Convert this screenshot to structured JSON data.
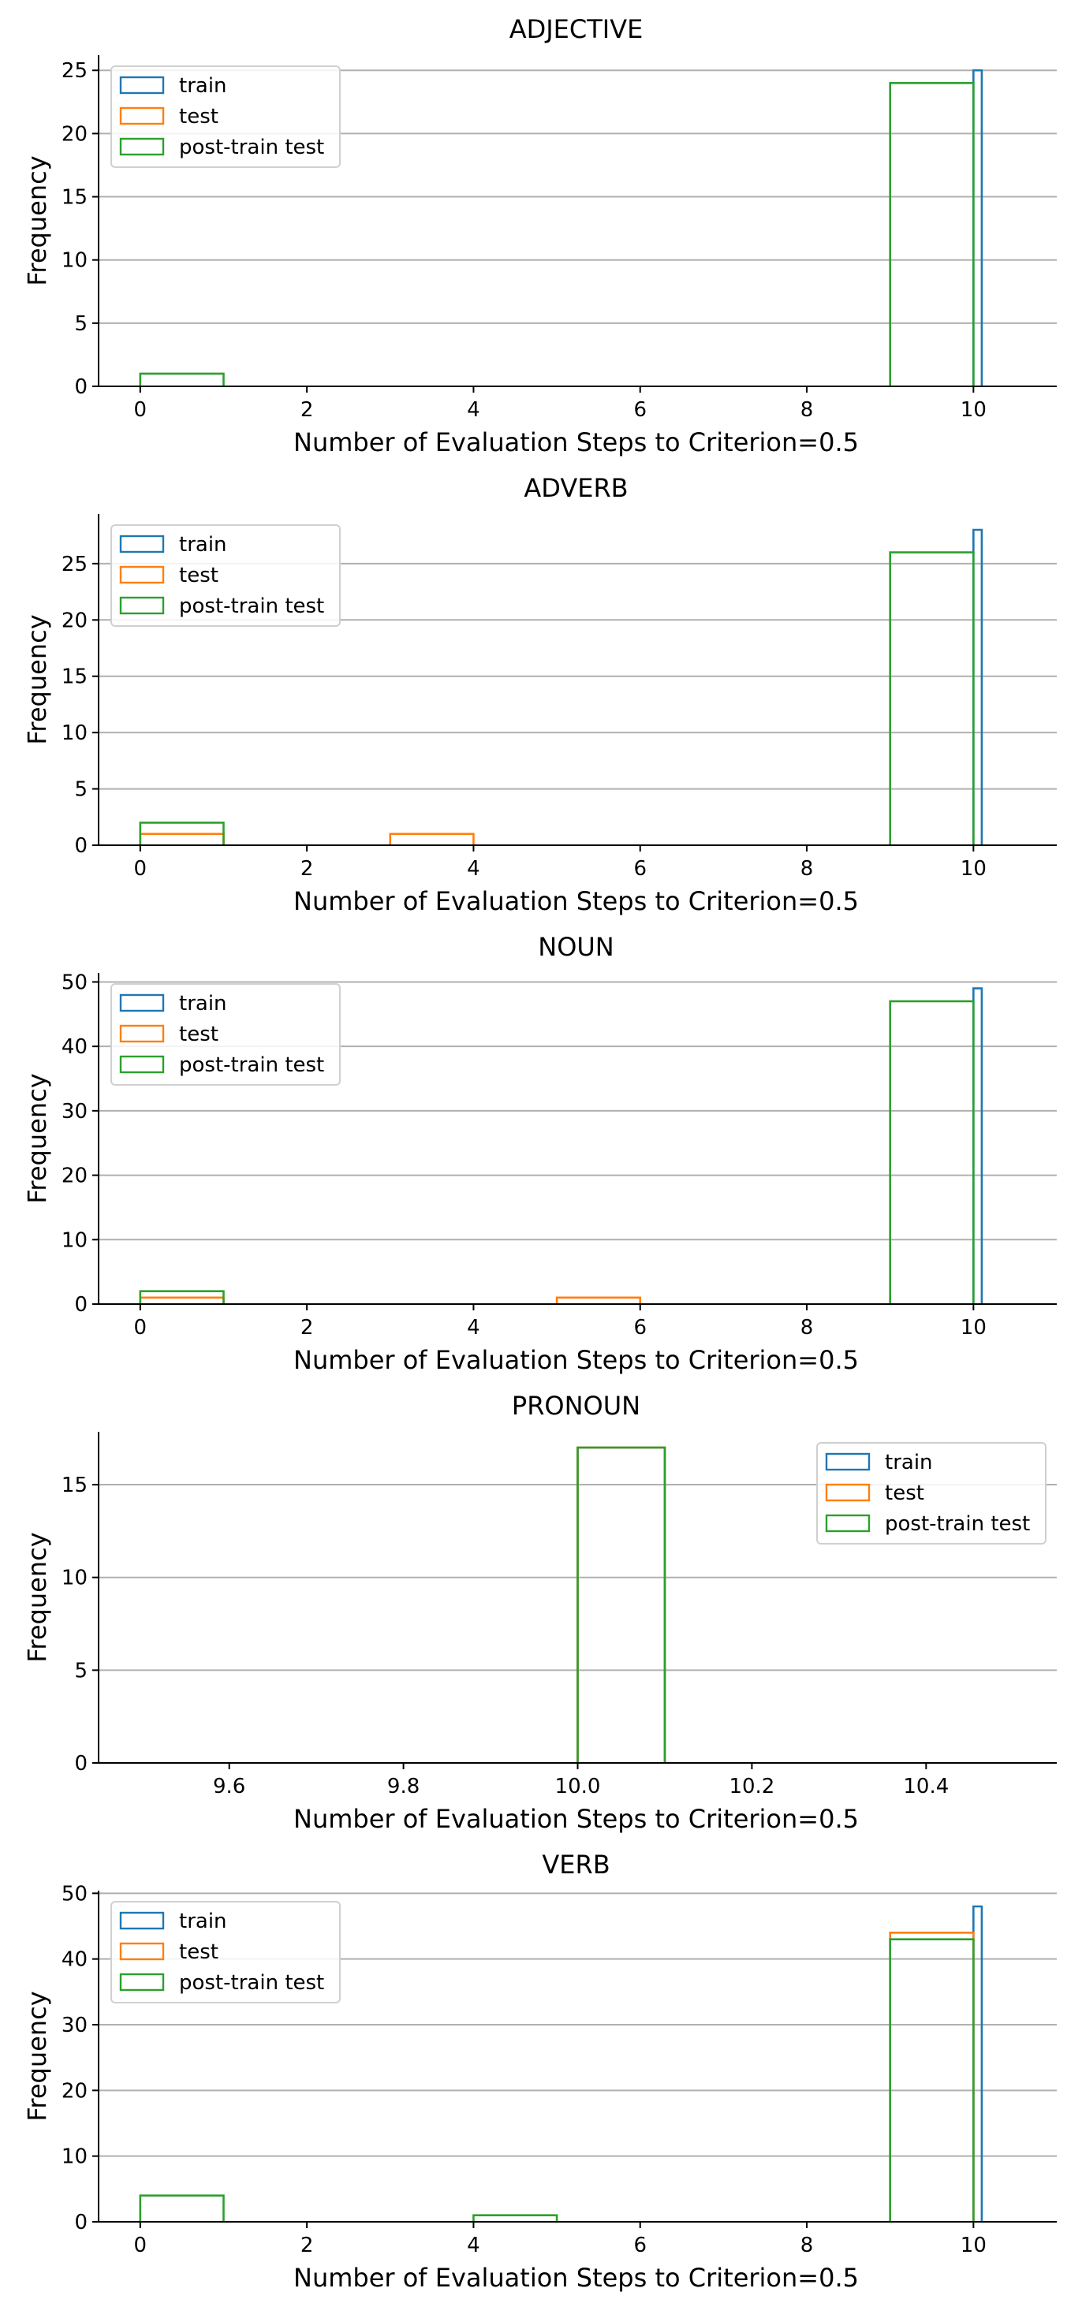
{
  "chart_data": [
    {
      "type": "histogram",
      "title": "ADJECTIVE",
      "xlabel": "Number of Evaluation Steps to Criterion=0.5",
      "ylabel": "Frequency",
      "xlim": [
        -0.5,
        11
      ],
      "ylim": [
        0,
        26.2
      ],
      "xticks": [
        0,
        2,
        4,
        6,
        8,
        10
      ],
      "yticks": [
        0,
        5,
        10,
        15,
        20,
        25
      ],
      "grid": "y",
      "legend_position": "upper-left",
      "series": [
        {
          "name": "train",
          "color": "#1f77b4",
          "bins": [
            [
              10,
              10.1,
              25
            ]
          ]
        },
        {
          "name": "test",
          "color": "#ff7f0e",
          "bins": []
        },
        {
          "name": "post-train test",
          "color": "#2ca02c",
          "bins": [
            [
              0,
              1,
              1
            ],
            [
              9,
              10,
              24
            ]
          ]
        }
      ]
    },
    {
      "type": "histogram",
      "title": "ADVERB",
      "xlabel": "Number of Evaluation Steps to Criterion=0.5",
      "ylabel": "Frequency",
      "xlim": [
        -0.5,
        11
      ],
      "ylim": [
        0,
        29.4
      ],
      "xticks": [
        0,
        2,
        4,
        6,
        8,
        10
      ],
      "yticks": [
        0,
        5,
        10,
        15,
        20,
        25
      ],
      "grid": "y",
      "legend_position": "upper-left",
      "series": [
        {
          "name": "train",
          "color": "#1f77b4",
          "bins": [
            [
              10,
              10.1,
              28
            ]
          ]
        },
        {
          "name": "test",
          "color": "#ff7f0e",
          "bins": [
            [
              0,
              1,
              1
            ],
            [
              3,
              4,
              1
            ]
          ]
        },
        {
          "name": "post-train test",
          "color": "#2ca02c",
          "bins": [
            [
              0,
              1,
              2
            ],
            [
              9,
              10,
              26
            ]
          ]
        }
      ]
    },
    {
      "type": "histogram",
      "title": "NOUN",
      "xlabel": "Number of Evaluation Steps to Criterion=0.5",
      "ylabel": "Frequency",
      "xlim": [
        -0.5,
        11
      ],
      "ylim": [
        0,
        51.4
      ],
      "xticks": [
        0,
        2,
        4,
        6,
        8,
        10
      ],
      "yticks": [
        0,
        10,
        20,
        30,
        40,
        50
      ],
      "grid": "y",
      "legend_position": "upper-left",
      "series": [
        {
          "name": "train",
          "color": "#1f77b4",
          "bins": [
            [
              10,
              10.1,
              49
            ]
          ]
        },
        {
          "name": "test",
          "color": "#ff7f0e",
          "bins": [
            [
              0,
              1,
              1
            ],
            [
              5,
              6,
              1
            ]
          ]
        },
        {
          "name": "post-train test",
          "color": "#2ca02c",
          "bins": [
            [
              0,
              1,
              2
            ],
            [
              9,
              10,
              47
            ]
          ]
        }
      ]
    },
    {
      "type": "histogram",
      "title": "PRONOUN",
      "xlabel": "Number of Evaluation Steps to Criterion=0.5",
      "ylabel": "Frequency",
      "xlim": [
        9.45,
        10.55
      ],
      "ylim": [
        0,
        17.85
      ],
      "xticks": [
        9.6,
        9.8,
        10.0,
        10.2,
        10.4
      ],
      "yticks": [
        0,
        5,
        10,
        15
      ],
      "grid": "y",
      "legend_position": "upper-right",
      "series": [
        {
          "name": "train",
          "color": "#1f77b4",
          "bins": [
            [
              10.0,
              10.1,
              17
            ]
          ]
        },
        {
          "name": "test",
          "color": "#ff7f0e",
          "bins": [
            [
              10.0,
              10.1,
              17
            ]
          ]
        },
        {
          "name": "post-train test",
          "color": "#2ca02c",
          "bins": [
            [
              10.0,
              10.1,
              17
            ]
          ]
        }
      ]
    },
    {
      "type": "histogram",
      "title": "VERB",
      "xlabel": "Number of Evaluation Steps to Criterion=0.5",
      "ylabel": "Frequency",
      "xlim": [
        -0.5,
        11
      ],
      "ylim": [
        0,
        50.4
      ],
      "xticks": [
        0,
        2,
        4,
        6,
        8,
        10
      ],
      "yticks": [
        0,
        10,
        20,
        30,
        40,
        50
      ],
      "grid": "y",
      "legend_position": "upper-left",
      "series": [
        {
          "name": "train",
          "color": "#1f77b4",
          "bins": [
            [
              10,
              10.1,
              48
            ]
          ]
        },
        {
          "name": "test",
          "color": "#ff7f0e",
          "bins": [
            [
              9,
              10,
              44
            ]
          ]
        },
        {
          "name": "post-train test",
          "color": "#2ca02c",
          "bins": [
            [
              0,
              1,
              4
            ],
            [
              4,
              5,
              1
            ],
            [
              9,
              10,
              43
            ]
          ]
        }
      ]
    }
  ]
}
